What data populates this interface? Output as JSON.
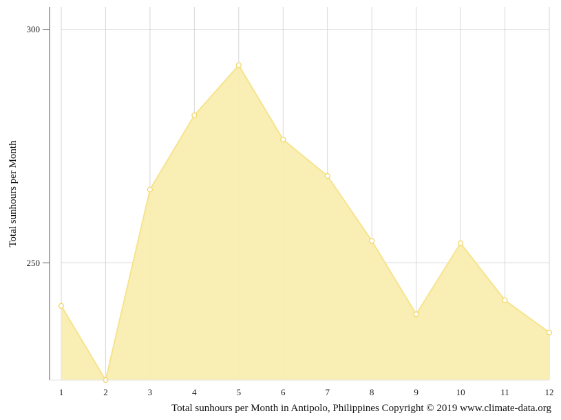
{
  "chart_data": {
    "type": "area",
    "title": "",
    "caption": "Total sunhours per Month in Antipolo, Philippines Copyright © 2019 www.climate-data.org",
    "xlabel": "",
    "ylabel": "Total sunhours per Month",
    "x": [
      "1",
      "2",
      "3",
      "4",
      "5",
      "6",
      "7",
      "8",
      "9",
      "10",
      "11",
      "12"
    ],
    "series": [
      {
        "values": [
          240.8,
          224.9,
          265.7,
          281.6,
          292.3,
          276.4,
          268.6,
          254.7,
          239.0,
          254.2,
          242.0,
          235.1
        ]
      }
    ],
    "ylim": [
      224.9,
      304.8
    ],
    "yticks": [
      250,
      300
    ],
    "grid": true,
    "colors": {
      "fill": "#f9eeb0",
      "line": "#f7e38e",
      "marker_stroke": "#f2d560",
      "grid": "#d6d6d6",
      "axis": "#555555"
    }
  }
}
